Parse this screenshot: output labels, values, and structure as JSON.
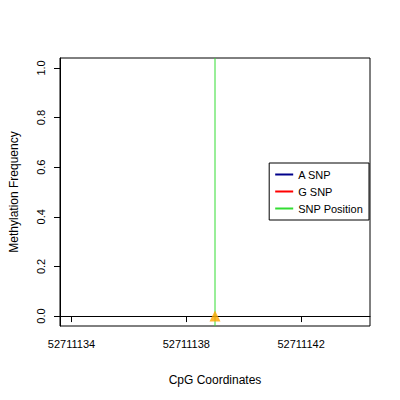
{
  "chart_data": {
    "type": "line",
    "x_label": "CpG Coordinates",
    "y_label": "Methylation Frequency",
    "xlim": [
      52711133.6,
      52711144.4
    ],
    "xticks": [
      52711134,
      52711138,
      52711142
    ],
    "ylim": [
      -0.04,
      1.04
    ],
    "yticks": [
      {
        "value": 0,
        "label": "0.0"
      },
      {
        "value": 0.2,
        "label": "0.2"
      },
      {
        "value": 0.4,
        "label": "0.4"
      },
      {
        "value": 0.6,
        "label": "0.6"
      },
      {
        "value": 0.8,
        "label": "0.8"
      },
      {
        "value": 1,
        "label": "1.0"
      }
    ],
    "grid": false,
    "legend": "right",
    "series": [
      {
        "name": "A SNP",
        "color": "#00008b",
        "x": [],
        "values": []
      },
      {
        "name": "G SNP",
        "color": "#ff0000",
        "x": [],
        "values": []
      },
      {
        "name": "SNP Position",
        "color": "#33dd33",
        "x": [
          52711139
        ],
        "line_style": "vertical"
      }
    ],
    "points": {
      "x": [
        52711139
      ],
      "values": [
        0
      ],
      "color": "#ffa500",
      "marker": "triangle"
    }
  }
}
